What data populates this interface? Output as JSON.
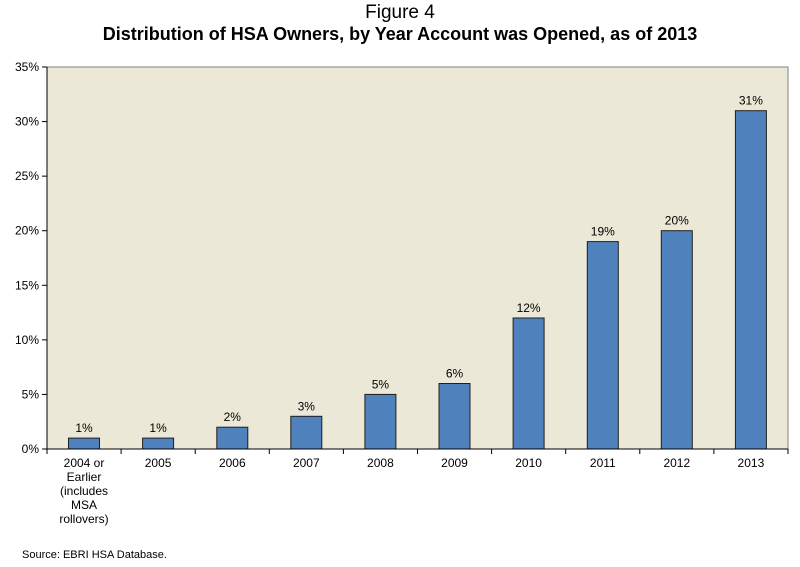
{
  "figure_label": "Figure 4",
  "source": "Source: EBRI HSA Database.",
  "colors": {
    "plot_background": "#ECE8D8",
    "bar_fill": "#4F81BD",
    "bar_stroke": "#1F1F1F",
    "axis": "#000000"
  },
  "chart_data": {
    "type": "bar",
    "title": "Distribution of HSA Owners, by Year Account was Opened, as of 2013",
    "xlabel": "",
    "ylabel": "",
    "categories": [
      [
        "2004 or",
        "Earlier",
        "(includes",
        "MSA",
        "rollovers)"
      ],
      [
        "2005"
      ],
      [
        "2006"
      ],
      [
        "2007"
      ],
      [
        "2008"
      ],
      [
        "2009"
      ],
      [
        "2010"
      ],
      [
        "2011"
      ],
      [
        "2012"
      ],
      [
        "2013"
      ]
    ],
    "values": [
      1,
      1,
      2,
      3,
      5,
      6,
      12,
      19,
      20,
      31
    ],
    "data_labels": [
      "1%",
      "1%",
      "2%",
      "3%",
      "5%",
      "6%",
      "12%",
      "19%",
      "20%",
      "31%"
    ],
    "ylim": [
      0,
      35
    ],
    "yticks": [
      0,
      5,
      10,
      15,
      20,
      25,
      30,
      35
    ],
    "ytick_labels": [
      "0%",
      "5%",
      "10%",
      "15%",
      "20%",
      "25%",
      "30%",
      "35%"
    ],
    "grid": false,
    "legend": "none"
  }
}
